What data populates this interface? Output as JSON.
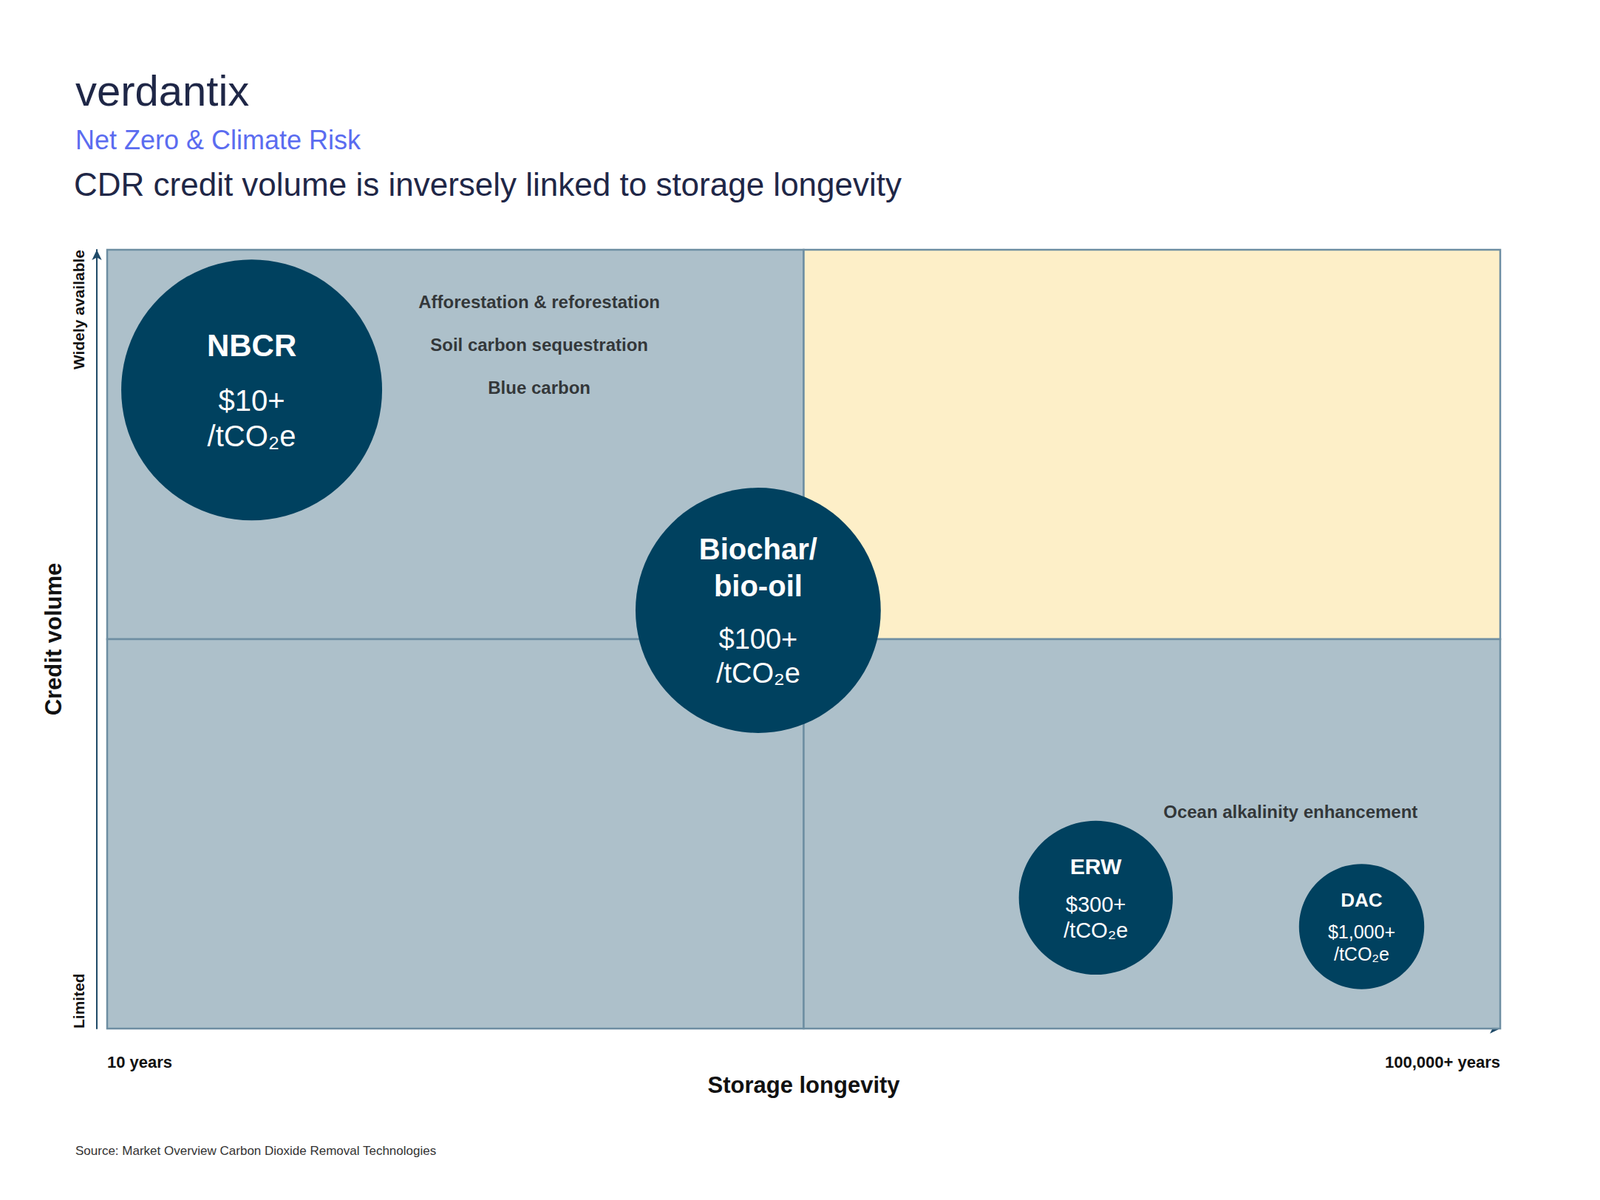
{
  "chart_data": {
    "type": "scatter",
    "brand": "verdantix",
    "subtitle": "Net Zero & Climate Risk",
    "title": "CDR credit volume is inversely linked to storage longevity",
    "source": "Source: Market Overview Carbon Dioxide Removal Technologies",
    "xlabel": "Storage longevity",
    "ylabel": "Credit volume",
    "log": "x",
    "grid": false,
    "xlim": [
      10,
      100000
    ],
    "xticks": [
      {
        "value": 10,
        "label": "10 years"
      },
      {
        "value": 100000,
        "label": "100,000+ years"
      }
    ],
    "ylim": [
      0,
      1
    ],
    "yticks": [
      {
        "value": 0,
        "label": "Limited"
      },
      {
        "value": 1,
        "label": "Widely available"
      }
    ],
    "dividers": {
      "x": 1000,
      "y": 0.5
    },
    "color": "#00415f",
    "labels": [
      "NBCR",
      "Biochar/\nbio-oil",
      "ERW",
      "DAC"
    ],
    "price_labels": [
      "$10+\n/tCO₂e",
      "$100+\n/tCO₂e",
      "$300+\n/tCO₂e",
      "$1,000+\n/tCO₂e"
    ],
    "x": [
      26,
      740,
      6900,
      40000
    ],
    "y": [
      0.82,
      0.537,
      0.168,
      0.131
    ],
    "size": [
      100,
      94,
      59,
      48
    ],
    "annotations": [
      {
        "text": "Afforestation & reforestation",
        "x": 174,
        "y": 0.933
      },
      {
        "text": "Soil carbon sequestration",
        "x": 174,
        "y": 0.878
      },
      {
        "text": "Blue carbon",
        "x": 174,
        "y": 0.823
      },
      {
        "text": "Ocean alkalinity enhancement",
        "x": 25000,
        "y": 0.278
      }
    ]
  }
}
